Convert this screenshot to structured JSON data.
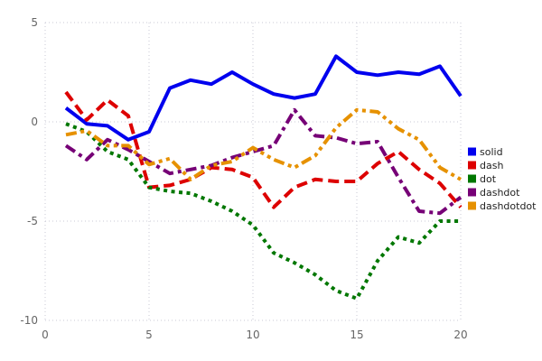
{
  "chart_data": {
    "type": "line",
    "title": "",
    "xlabel": "",
    "ylabel": "",
    "xlim": [
      0,
      20
    ],
    "ylim": [
      -10,
      5
    ],
    "x_ticks": [
      0,
      5,
      10,
      15,
      20
    ],
    "y_ticks": [
      5,
      0,
      -5,
      -10
    ],
    "grid": true,
    "grid_style": "dotted",
    "legend_position": "right",
    "x": [
      1,
      2,
      3,
      4,
      5,
      6,
      7,
      8,
      9,
      10,
      11,
      12,
      13,
      14,
      15,
      16,
      17,
      18,
      19,
      20
    ],
    "series": [
      {
        "name": "solid",
        "color": "#0000ee",
        "line_style": "solid",
        "values": [
          0.7,
          -0.1,
          -0.2,
          -0.9,
          -0.5,
          1.7,
          2.1,
          1.9,
          2.5,
          1.9,
          1.4,
          1.2,
          1.4,
          3.3,
          2.5,
          2.35,
          2.5,
          2.4,
          2.8,
          1.3
        ]
      },
      {
        "name": "dash",
        "color": "#dd0000",
        "line_style": "dash",
        "values": [
          1.5,
          0.1,
          1.1,
          0.3,
          -3.3,
          -3.2,
          -2.9,
          -2.3,
          -2.4,
          -2.8,
          -4.3,
          -3.3,
          -2.9,
          -3.0,
          -3.0,
          -2.1,
          -1.5,
          -2.4,
          -3.1,
          -4.3
        ]
      },
      {
        "name": "dot",
        "color": "#007700",
        "line_style": "dot",
        "values": [
          -0.1,
          -0.5,
          -1.5,
          -1.9,
          -3.3,
          -3.5,
          -3.6,
          -4.0,
          -4.5,
          -5.2,
          -6.6,
          -7.1,
          -7.7,
          -8.5,
          -8.9,
          -7.0,
          -5.8,
          -6.1,
          -5.0,
          -5.0
        ]
      },
      {
        "name": "dashdot",
        "color": "#760076",
        "line_style": "dashdot",
        "values": [
          -1.2,
          -1.9,
          -0.9,
          -1.4,
          -2.0,
          -2.6,
          -2.4,
          -2.2,
          -1.8,
          -1.5,
          -1.2,
          0.6,
          -0.7,
          -0.8,
          -1.1,
          -1.0,
          -2.8,
          -4.5,
          -4.6,
          -3.8
        ]
      },
      {
        "name": "dashdotdot",
        "color": "#e69100",
        "line_style": "dashdotdot",
        "values": [
          -0.65,
          -0.45,
          -1.2,
          -1.2,
          -2.15,
          -1.85,
          -2.9,
          -2.2,
          -2.0,
          -1.3,
          -1.9,
          -2.3,
          -1.7,
          -0.3,
          0.6,
          0.5,
          -0.35,
          -0.9,
          -2.3,
          -2.9
        ]
      }
    ],
    "colors": {
      "background": "#ffffff",
      "gridline": "#c9c9d4",
      "tick_label": "#666666",
      "legend_text": "#222222"
    }
  }
}
